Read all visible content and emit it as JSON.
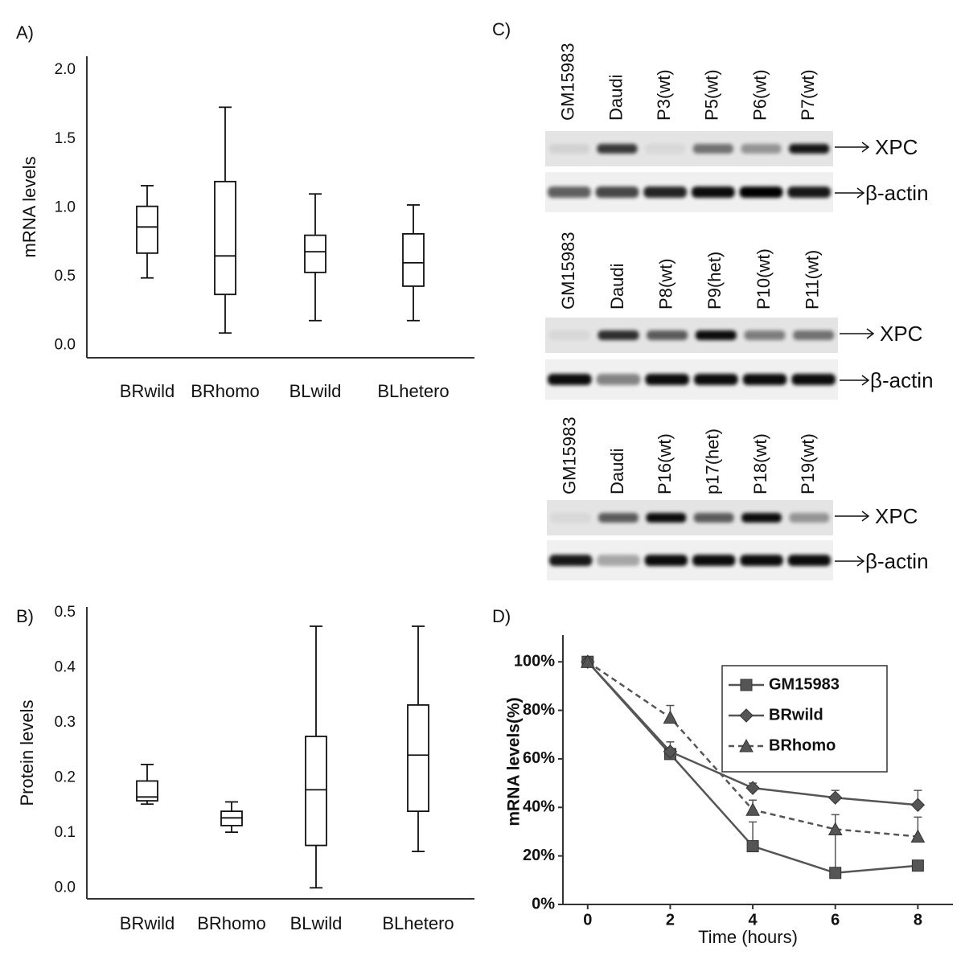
{
  "chart_data": [
    {
      "type": "box",
      "panel": "A)",
      "y_label": "mRNA levels",
      "categories": [
        "BRwild",
        "BRhomo",
        "BLwild",
        "BLhetero"
      ],
      "boxes": [
        {
          "whislo": 0.49,
          "q1": 0.67,
          "median": 0.86,
          "q3": 1.01,
          "whishi": 1.16
        },
        {
          "whislo": 0.09,
          "q1": 0.37,
          "median": 0.65,
          "q3": 1.19,
          "whishi": 1.73
        },
        {
          "whislo": 0.18,
          "q1": 0.53,
          "median": 0.68,
          "q3": 0.8,
          "whishi": 1.1
        },
        {
          "whislo": 0.18,
          "q1": 0.43,
          "median": 0.6,
          "q3": 0.81,
          "whishi": 1.02
        }
      ],
      "color": "#111111",
      "ylim": [
        -0.09,
        2.1
      ],
      "yticks": [
        {
          "value": 0,
          "label": "0.0"
        },
        0.5,
        {
          "value": 1,
          "label": "1.0"
        },
        1.5,
        {
          "value": 2,
          "label": "2.0"
        }
      ],
      "grid": false
    },
    {
      "type": "box",
      "panel": "B)",
      "y_label": "Protein levels",
      "categories": [
        "BRwild",
        "BRhomo",
        "BLwild",
        "BLhetero"
      ],
      "boxes": [
        {
          "whislo": 0.152,
          "q1": 0.158,
          "median": 0.165,
          "q3": 0.194,
          "whishi": 0.224
        },
        {
          "whislo": 0.101,
          "q1": 0.113,
          "median": 0.127,
          "q3": 0.139,
          "whishi": 0.156
        },
        {
          "whislo": 0.0,
          "q1": 0.077,
          "median": 0.178,
          "q3": 0.275,
          "whishi": 0.475
        },
        {
          "whislo": 0.066,
          "q1": 0.139,
          "median": 0.241,
          "q3": 0.332,
          "whishi": 0.475
        }
      ],
      "color": "#111111",
      "ylim": [
        -0.02,
        0.51
      ],
      "yticks": [
        {
          "value": 0,
          "label": "0.0"
        },
        0.1,
        0.2,
        0.3,
        0.4,
        0.5
      ],
      "grid": false
    },
    {
      "type": "line",
      "panel": "D)",
      "x_label": "Time (hours)",
      "y_label": "mRNA levels(%)",
      "x": [
        0,
        2,
        4,
        6,
        8
      ],
      "series": [
        {
          "name": "GM15983",
          "color": "#555555",
          "marker": "square",
          "dash": false,
          "values": [
            100,
            62,
            24,
            13,
            16
          ],
          "errors": [
            0,
            0,
            10,
            18,
            0
          ]
        },
        {
          "name": "BRwild",
          "color": "#555555",
          "marker": "diamond",
          "dash": false,
          "values": [
            100,
            63,
            48,
            44,
            41
          ],
          "errors": [
            0,
            4,
            2,
            3,
            6
          ]
        },
        {
          "name": "BRhomo",
          "color": "#555555",
          "marker": "triangle",
          "dash": true,
          "values": [
            100,
            77,
            39,
            31,
            28
          ],
          "errors": [
            0,
            5,
            4,
            6,
            8
          ]
        }
      ],
      "xlim": [
        -0.6,
        8.85
      ],
      "xticks": [
        0,
        2,
        4,
        6,
        8
      ],
      "ylim": [
        0,
        111
      ],
      "yticks": [
        {
          "value": 0,
          "label": "0%"
        },
        {
          "value": 20,
          "label": "20%"
        },
        {
          "value": 40,
          "label": "40%"
        },
        {
          "value": 60,
          "label": "60%"
        },
        {
          "value": 80,
          "label": "80%"
        },
        {
          "value": 100,
          "label": "100%"
        }
      ],
      "legend": "upper right",
      "grid": false
    }
  ],
  "blot": {
    "panel": "C)",
    "bands": [
      "XPC",
      "β-actin"
    ],
    "blocks": [
      {
        "lanes": [
          "GM15983",
          "Daudi",
          "P3(wt)",
          "P5(wt)",
          "P6(wt)",
          "P7(wt)"
        ]
      },
      {
        "lanes": [
          "GM15983",
          "Daudi",
          "P8(wt)",
          "P9(het)",
          "P10(wt)",
          "P11(wt)"
        ]
      },
      {
        "lanes": [
          "GM15983",
          "Daudi",
          "P16(wt)",
          "p17(het)",
          "P18(wt)",
          "P19(wt)"
        ]
      }
    ]
  }
}
